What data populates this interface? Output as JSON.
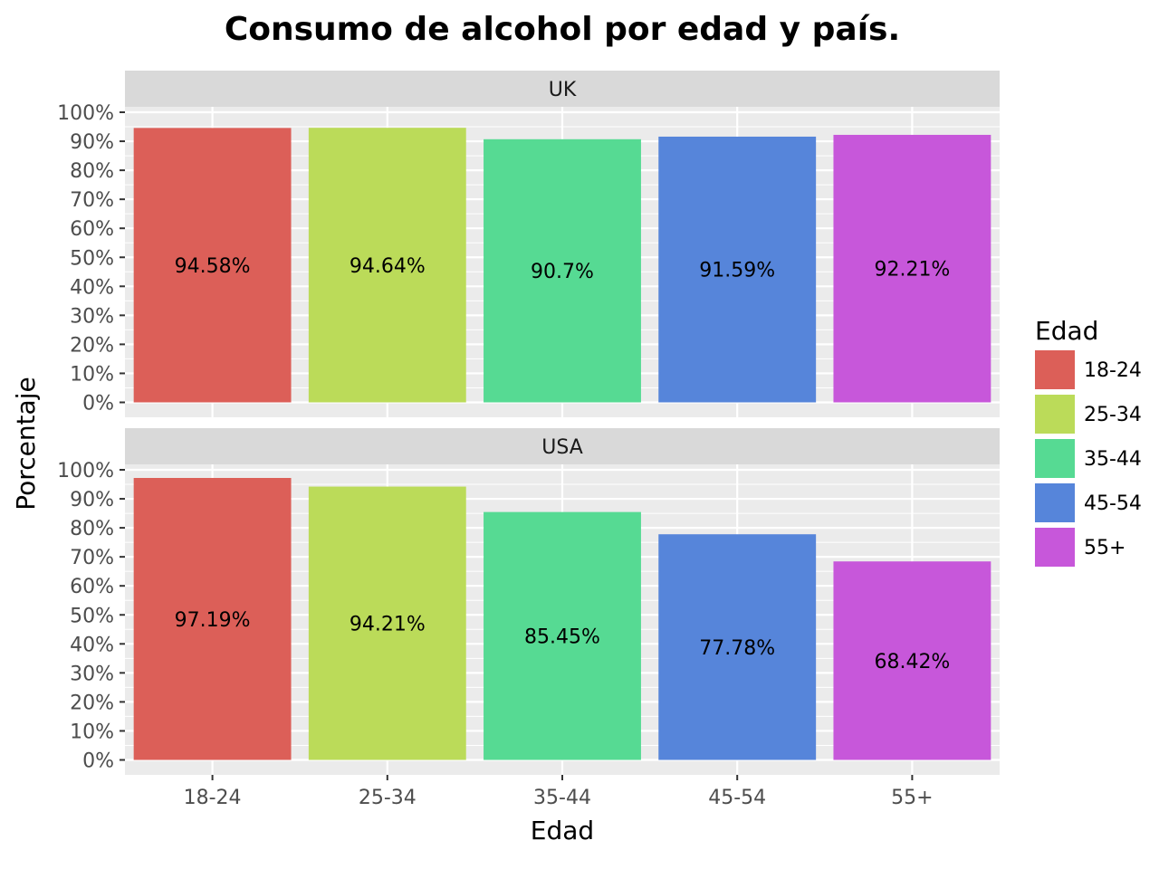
{
  "chart_data": {
    "type": "bar",
    "title": "Consumo de alcohol por edad y país.",
    "xlabel": "Edad",
    "ylabel": "Porcentaje",
    "categories": [
      "18-24",
      "25-34",
      "35-44",
      "45-54",
      "55+"
    ],
    "y_ticks": [
      "0%",
      "10%",
      "20%",
      "30%",
      "40%",
      "50%",
      "60%",
      "70%",
      "80%",
      "90%",
      "100%"
    ],
    "ylim": [
      0,
      100
    ],
    "grid": true,
    "legend": {
      "title": "Edad",
      "placement": "right",
      "entries": [
        "18-24",
        "25-34",
        "35-44",
        "45-54",
        "55+"
      ]
    },
    "colors": [
      "#dc5f58",
      "#bbdb59",
      "#56da93",
      "#5685da",
      "#c757da"
    ],
    "panels": [
      {
        "name": "UK",
        "values": [
          94.58,
          94.64,
          90.7,
          91.59,
          92.21
        ],
        "labels": [
          "94.58%",
          "94.64%",
          "90.7%",
          "91.59%",
          "92.21%"
        ]
      },
      {
        "name": "USA",
        "values": [
          97.19,
          94.21,
          85.45,
          77.78,
          68.42
        ],
        "labels": [
          "97.19%",
          "94.21%",
          "85.45%",
          "77.78%",
          "68.42%"
        ]
      }
    ]
  }
}
